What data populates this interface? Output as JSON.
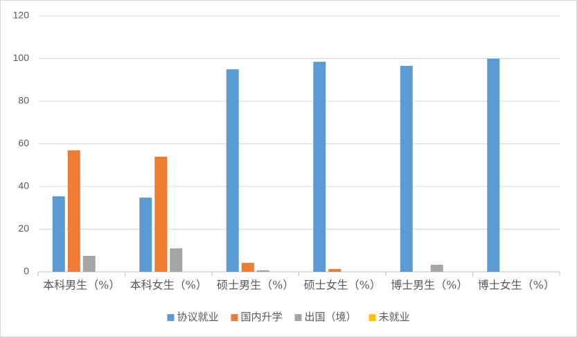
{
  "chart_data": {
    "type": "bar",
    "categories": [
      "本科男生（%）",
      "本科女生（%）",
      "硕士男生（%）",
      "硕士女生（%）",
      "博士男生（%）",
      "博士女生（%）"
    ],
    "series": [
      {
        "name": "协议就业",
        "color": "#5b9bd5",
        "values": [
          35.4,
          34.8,
          95,
          98.5,
          96.6,
          100
        ]
      },
      {
        "name": "国内升学",
        "color": "#ed7d31",
        "values": [
          57,
          54,
          4.2,
          1.3,
          0,
          0
        ]
      },
      {
        "name": "出国（境）",
        "color": "#a5a5a5",
        "values": [
          7.5,
          11,
          0.7,
          0,
          3.3,
          0
        ]
      },
      {
        "name": "未就业",
        "color": "#ffc000",
        "values": [
          0,
          0,
          0,
          0,
          0,
          0
        ]
      }
    ],
    "ylim": [
      0,
      120
    ],
    "yticks": [
      0,
      20,
      40,
      60,
      80,
      100,
      120
    ],
    "grid": true,
    "legend": "bottom"
  }
}
